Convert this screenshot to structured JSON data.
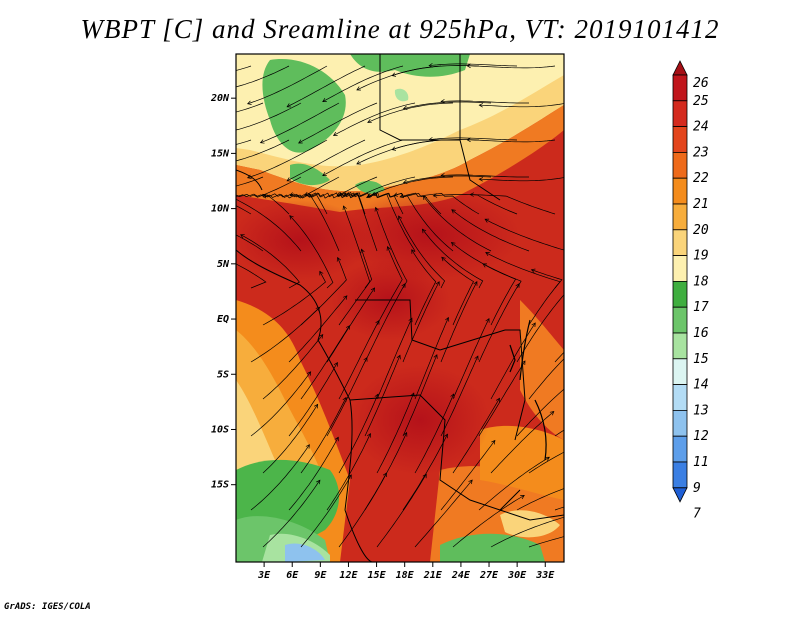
{
  "title": "WBPT [C] and Sreamline at 925hPa, VT: 2019101412",
  "credit": "GrADS: IGES/COLA",
  "map": {
    "lat_range": [
      -22,
      24
    ],
    "lon_range": [
      0,
      35
    ],
    "lat_ticks": [
      "20N",
      "15N",
      "10N",
      "5N",
      "EQ",
      "5S",
      "10S",
      "15S"
    ],
    "lat_tick_values": [
      20,
      15,
      10,
      5,
      0,
      -5,
      -10,
      -15
    ],
    "lon_ticks": [
      "3E",
      "6E",
      "9E",
      "12E",
      "15E",
      "18E",
      "21E",
      "24E",
      "27E",
      "30E",
      "33E"
    ],
    "lon_tick_values": [
      3,
      6,
      9,
      12,
      15,
      18,
      21,
      24,
      27,
      30,
      33
    ]
  },
  "colorbar": {
    "labels": [
      "26",
      "25",
      "24",
      "23",
      "22",
      "21",
      "20",
      "19",
      "18",
      "17",
      "16",
      "15",
      "14",
      "13",
      "12",
      "11",
      "9",
      "7"
    ],
    "colors": [
      "#a50f15",
      "#c0151b",
      "#d42a1e",
      "#e3451c",
      "#ee6a1a",
      "#f48c1c",
      "#f7ad3c",
      "#fad47a",
      "#fdf0b0",
      "#3fae3f",
      "#6cc56a",
      "#a8e3a0",
      "#dcf5f2",
      "#b3dcf5",
      "#8ec2ee",
      "#5d9eea",
      "#3b7fe3",
      "#1f5fd6"
    ]
  }
}
